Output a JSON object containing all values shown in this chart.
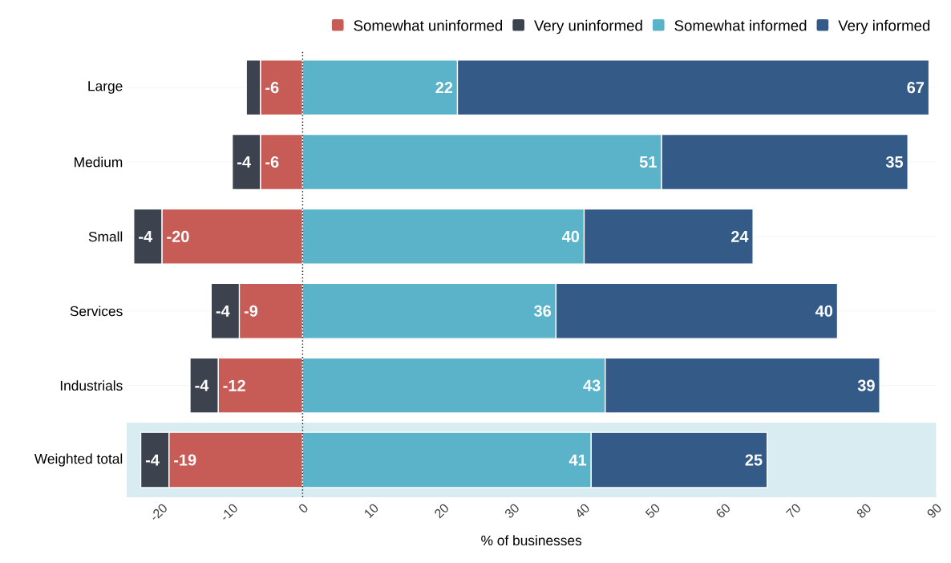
{
  "chart_data": {
    "type": "bar",
    "orientation": "horizontal",
    "stacked": true,
    "xlabel": "% of businesses",
    "categories": [
      "Large",
      "Medium",
      "Small",
      "Services",
      "Industrials",
      "Weighted total"
    ],
    "series": [
      {
        "name": "Somewhat uninformed",
        "color": "#c75b55",
        "values": [
          -6,
          -6,
          -20,
          -9,
          -12,
          -19
        ],
        "value_labels": [
          "-6",
          "-6",
          "-20",
          "-9",
          "-12",
          "-19"
        ]
      },
      {
        "name": "Very uninformed",
        "color": "#3d434e",
        "values": [
          -2,
          -4,
          -4,
          -4,
          -4,
          -4
        ],
        "value_labels": [
          null,
          "-4",
          "-4",
          "-4",
          "-4",
          "-4"
        ]
      },
      {
        "name": "Somewhat informed",
        "color": "#5bb3c9",
        "values": [
          22,
          51,
          40,
          36,
          43,
          41
        ],
        "value_labels": [
          "22",
          "51",
          "40",
          "36",
          "43",
          "41"
        ]
      },
      {
        "name": "Very informed",
        "color": "#345a87",
        "values": [
          67,
          35,
          24,
          40,
          39,
          25
        ],
        "value_labels": [
          "67",
          "35",
          "24",
          "40",
          "39",
          "25"
        ]
      }
    ],
    "xlim": [
      -25,
      90
    ],
    "xticks": [
      -20,
      -10,
      0,
      10,
      20,
      30,
      40,
      50,
      60,
      70,
      80,
      90
    ],
    "grid": "y",
    "legend": "top right",
    "ref_lines": [
      {
        "axis": "x",
        "value": 0,
        "line_style": "dotted",
        "color": "#222222"
      }
    ],
    "bands": [
      {
        "axis": "y",
        "from": "Weighted total",
        "to": "Weighted total",
        "color": "#d9ecf2"
      }
    ]
  }
}
